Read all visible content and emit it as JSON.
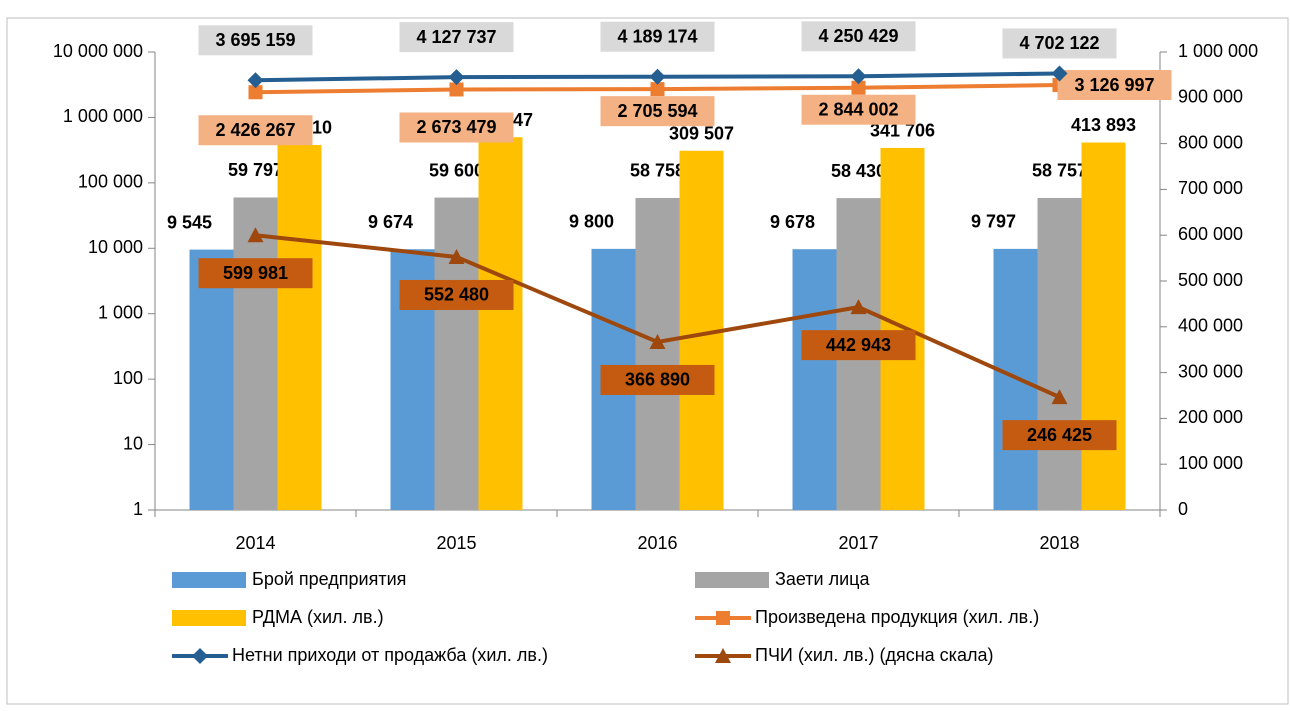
{
  "chart_data": {
    "type": "bar_line",
    "log_y": true,
    "categories": [
      "2014",
      "2015",
      "2016",
      "2017",
      "2018"
    ],
    "ylim": [
      1,
      10000000
    ],
    "yticks": [
      1,
      10,
      100,
      {
        "value": 1000,
        "label": "1 000"
      },
      {
        "value": 10000,
        "label": "10 000"
      },
      {
        "value": 100000,
        "label": "100 000"
      },
      {
        "value": 1000000,
        "label": "1 000 000"
      },
      {
        "value": 10000000,
        "label": "10 000 000"
      }
    ],
    "y2lim": [
      0,
      1000000
    ],
    "y2ticks": [
      0,
      {
        "value": 100000,
        "label": "100 000"
      },
      {
        "value": 200000,
        "label": "200 000"
      },
      {
        "value": 300000,
        "label": "300 000"
      },
      {
        "value": 400000,
        "label": "400 000"
      },
      {
        "value": 500000,
        "label": "500 000"
      },
      {
        "value": 600000,
        "label": "600 000"
      },
      {
        "value": 700000,
        "label": "700 000"
      },
      {
        "value": 800000,
        "label": "800 000"
      },
      {
        "value": 900000,
        "label": "900 000"
      },
      {
        "value": 1000000,
        "label": "1 000 000"
      }
    ],
    "series": [
      {
        "name": "Брой предприятия",
        "kind": "bar",
        "color": "#5b9bd5",
        "values": [
          9545,
          9674,
          9800,
          9678,
          9797
        ],
        "value_labels": [
          "9 545",
          "9 674",
          "9 800",
          "9 678",
          "9 797"
        ]
      },
      {
        "name": "Заети лица",
        "kind": "bar",
        "color": "#a5a5a5",
        "values": [
          59797,
          59600,
          58758,
          58430,
          58757
        ],
        "value_labels": [
          "59 797",
          "59 600",
          "58 758",
          "58 430",
          "58 757"
        ]
      },
      {
        "name": "РДМА (хил. лв.)",
        "kind": "bar",
        "color": "#ffc000",
        "values": [
          379410,
          498247,
          309507,
          341706,
          413893
        ],
        "value_labels": [
          "379 410",
          "498 247",
          "309 507",
          "341 706",
          "413 893"
        ]
      },
      {
        "name": "Произведена продукция (хил. лв.)",
        "kind": "line",
        "marker": "square",
        "color": "#ed7d31",
        "label_bg": "#f4b183",
        "values": [
          2426267,
          2673479,
          2705594,
          2844002,
          3126997
        ],
        "value_labels": [
          "2 426 267",
          "2 673 479",
          "2 705 594",
          "2 844 002",
          "3 126 997"
        ]
      },
      {
        "name": "Нетни приходи от продажба (хил. лв.)",
        "kind": "line",
        "marker": "diamond",
        "color": "#255e91",
        "label_bg": "#d9d9d9",
        "values": [
          3695159,
          4127737,
          4189174,
          4250429,
          4702122
        ],
        "value_labels": [
          "3 695 159",
          "4 127 737",
          "4 189 174",
          "4 250 429",
          "4 702 122"
        ]
      },
      {
        "name": "ПЧИ (хил. лв.) (дясна скала)",
        "kind": "line",
        "marker": "triangle",
        "axis": "y2",
        "color": "#9e480e",
        "label_bg": "#c55a11",
        "values": [
          599981,
          552480,
          366890,
          442943,
          246425
        ],
        "value_labels": [
          "599 981",
          "552 480",
          "366 890",
          "442 943",
          "246 425"
        ]
      }
    ]
  }
}
